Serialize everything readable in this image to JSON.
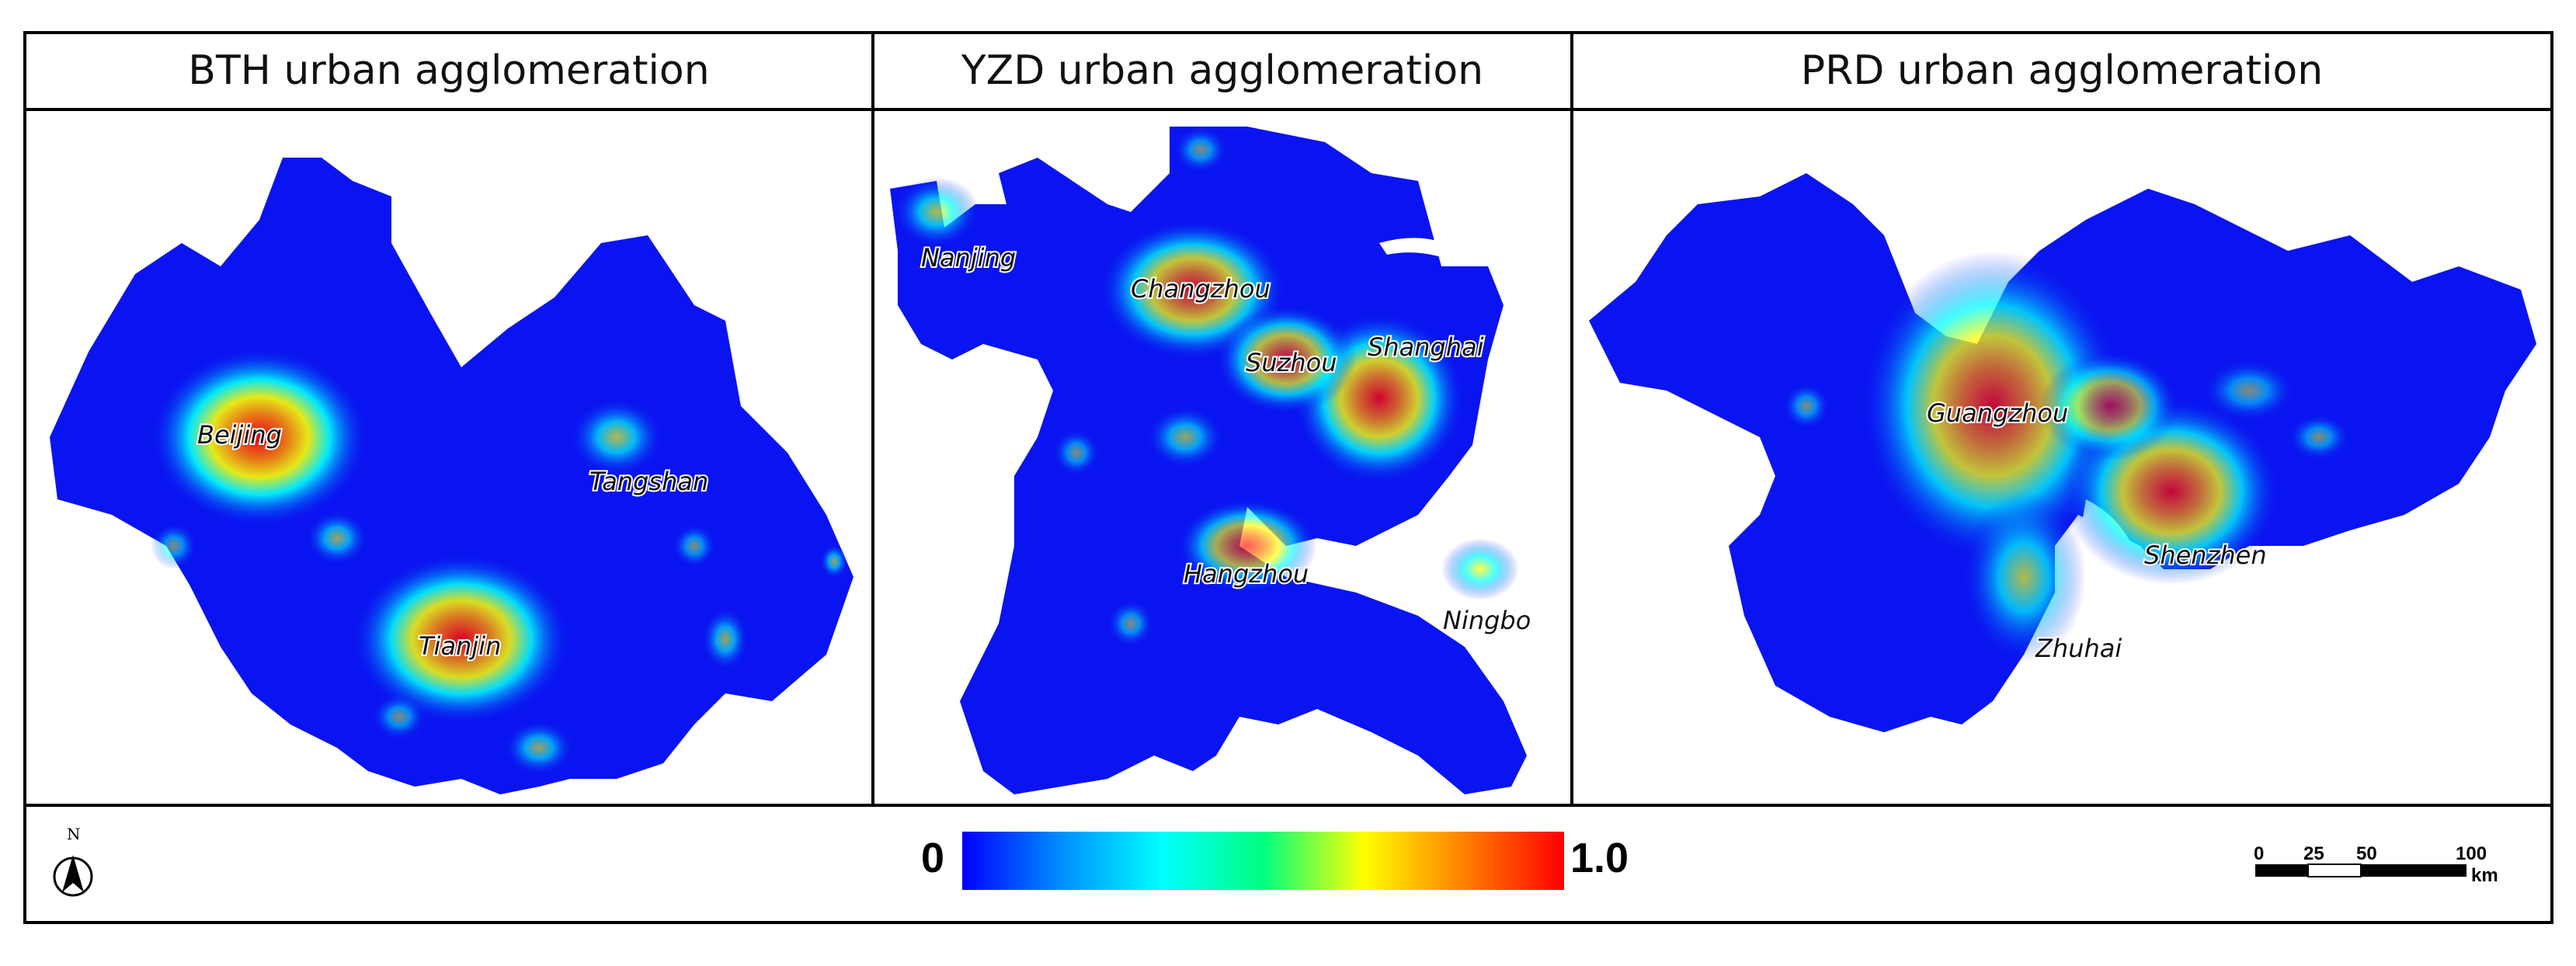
{
  "panels": [
    {
      "title": "BTH urban agglomeration",
      "cities": [
        "Beijing",
        "Tangshan",
        "Tianjin"
      ]
    },
    {
      "title": "YZD urban agglomeration",
      "cities": [
        "Nanjing",
        "Changzhou",
        "Suzhou",
        "Shanghai",
        "Hangzhou",
        "Ningbo"
      ]
    },
    {
      "title": "PRD urban agglomeration",
      "cities": [
        "Guangzhou",
        "Shenzhen",
        "Zhuhai"
      ]
    }
  ],
  "legend": {
    "colorbar": {
      "min_label": "0",
      "max_label": "1.0",
      "colors": [
        "#0000ff",
        "#0090ff",
        "#00ffff",
        "#00ff80",
        "#ffff00",
        "#ff8000",
        "#ff0000"
      ]
    },
    "north_label": "N",
    "scale_bar": {
      "ticks": [
        "0",
        "25",
        "50",
        "100"
      ],
      "unit": "km"
    }
  },
  "colors": {
    "base": "#0a14f0",
    "glow_low": "#00ffff",
    "glow_mid": "#ffff00",
    "glow_high": "#ff0000"
  }
}
